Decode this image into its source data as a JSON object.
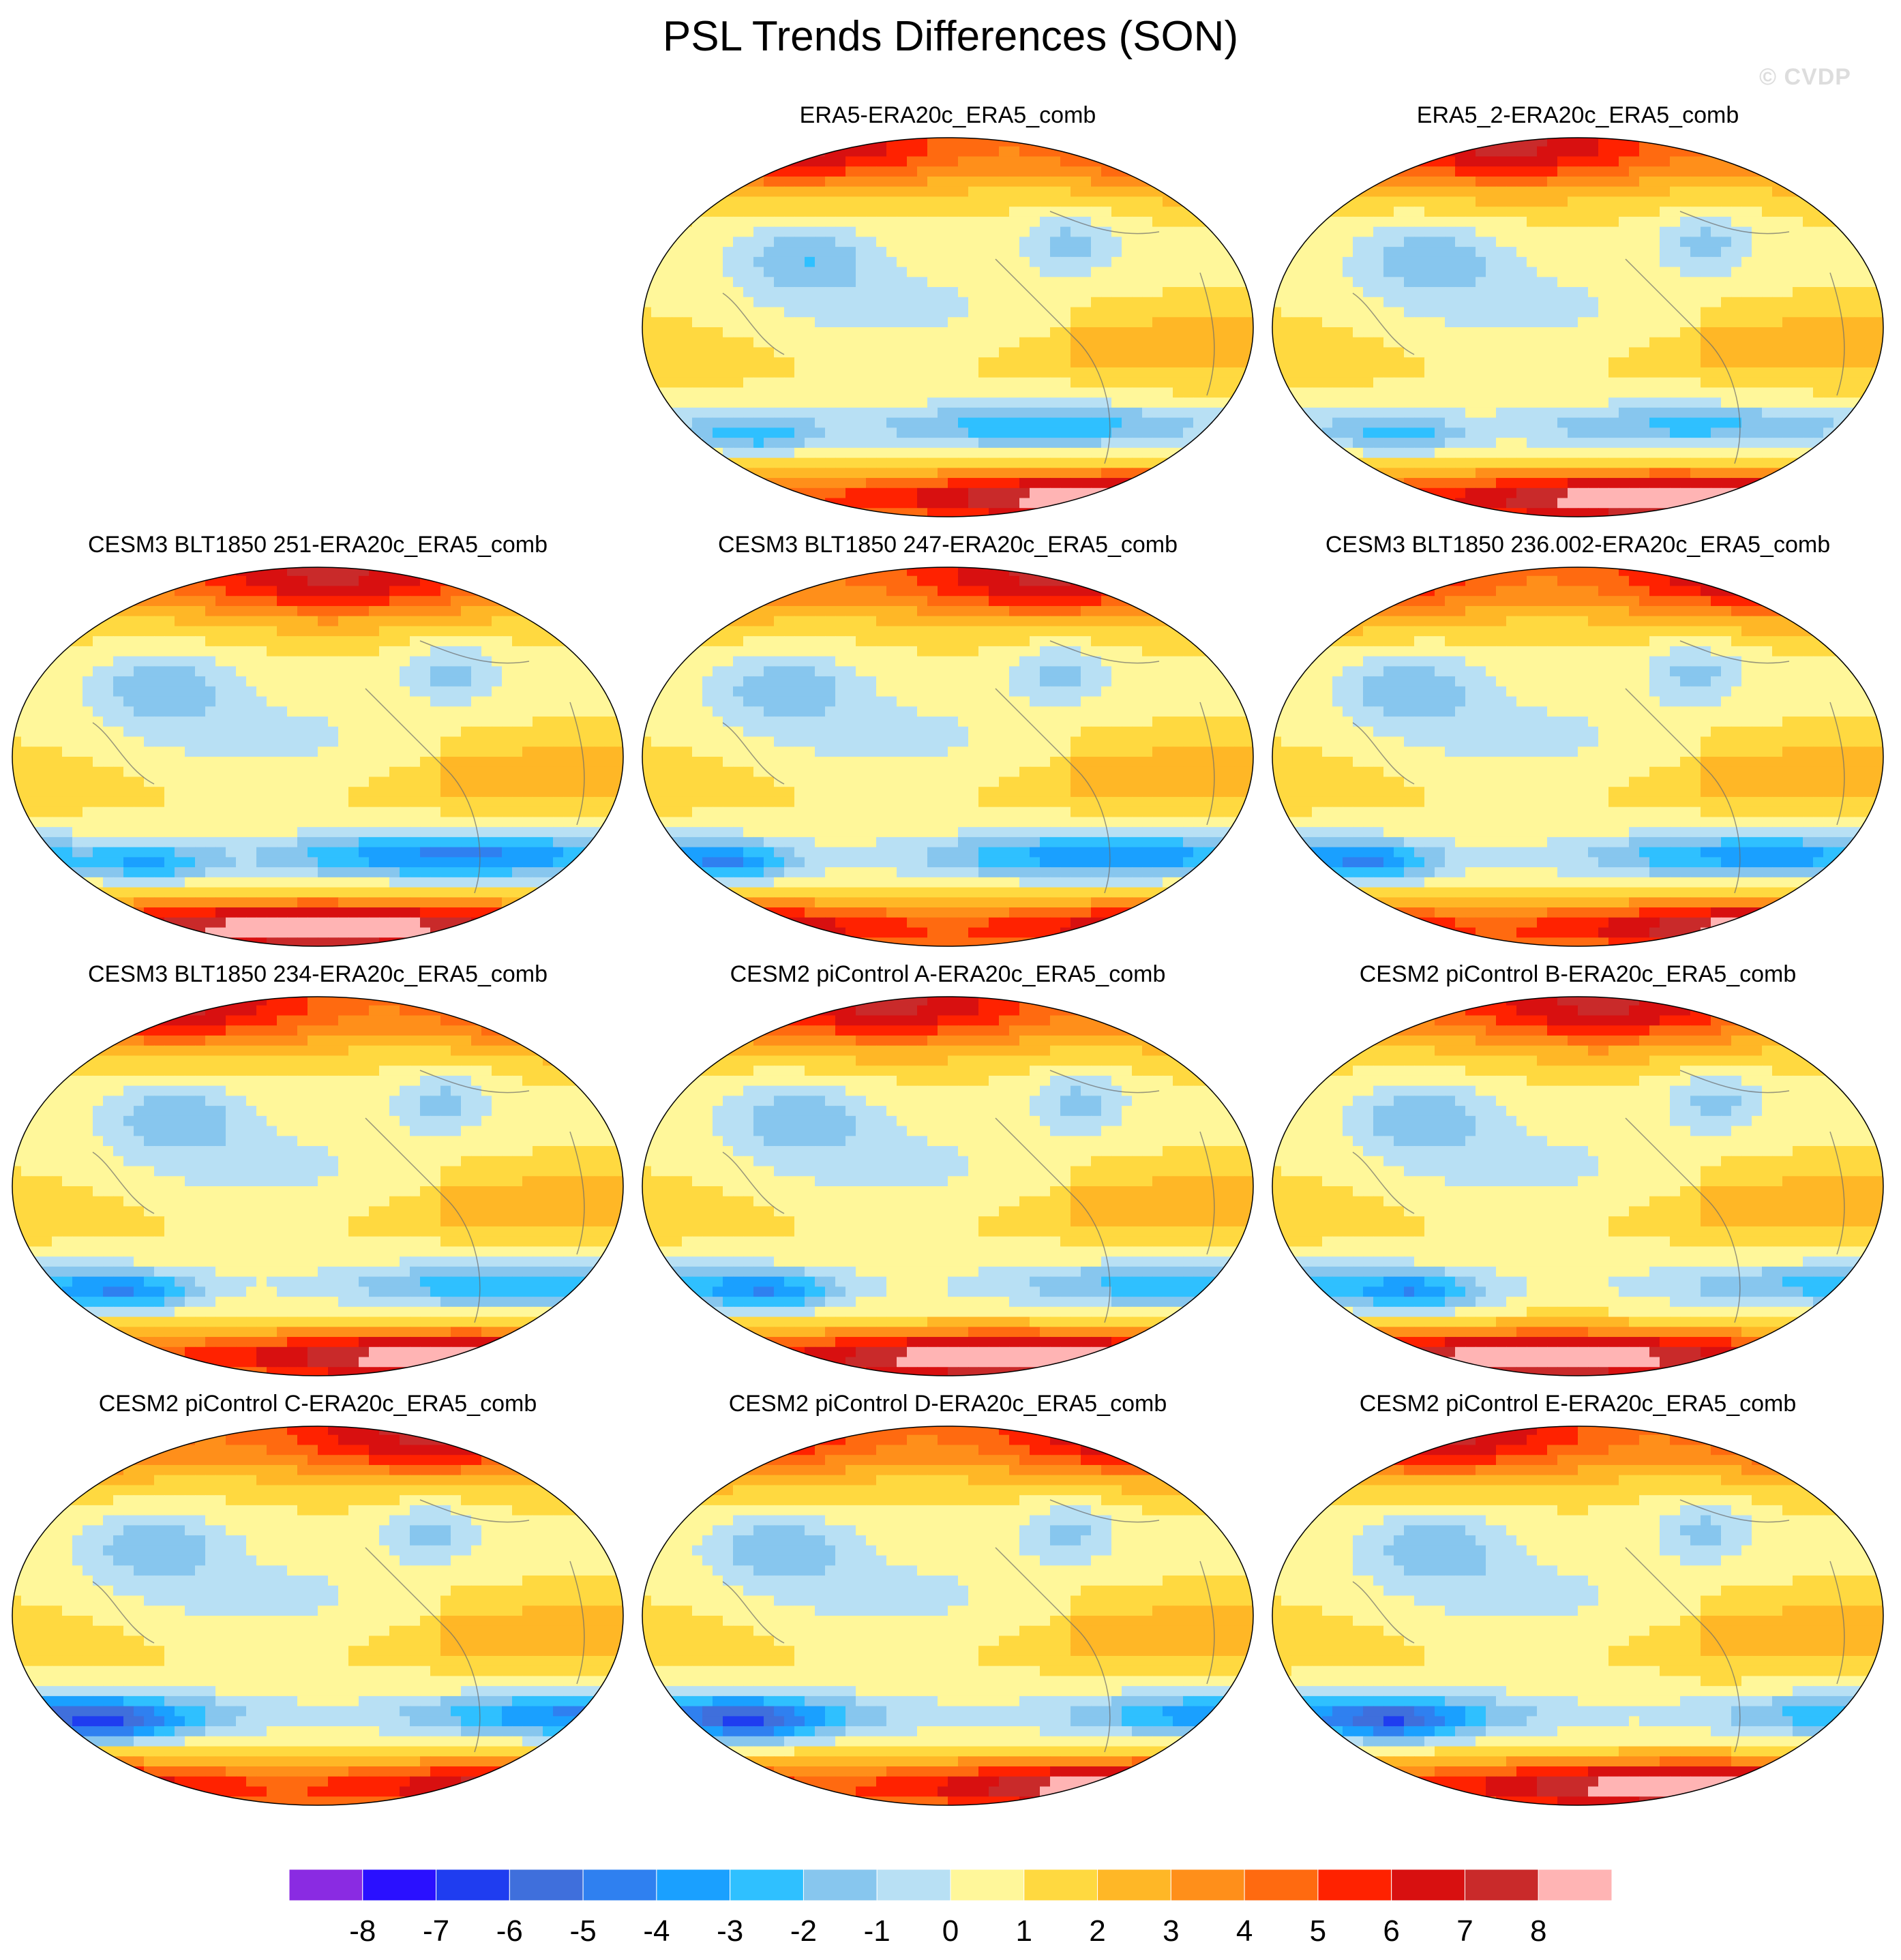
{
  "title": "PSL Trends Differences (SON)",
  "watermark": "© CVDP",
  "panels": [
    {
      "title": "ERA5-ERA20c_ERA5_comb",
      "variant": 0
    },
    {
      "title": "ERA5_2-ERA20c_ERA5_comb",
      "variant": 1
    },
    {
      "title": "CESM3 BLT1850 251-ERA20c_ERA5_comb",
      "variant": 2
    },
    {
      "title": "CESM3 BLT1850 247-ERA20c_ERA5_comb",
      "variant": 3
    },
    {
      "title": "CESM3 BLT1850 236.002-ERA20c_ERA5_comb",
      "variant": 4
    },
    {
      "title": "CESM3 BLT1850 234-ERA20c_ERA5_comb",
      "variant": 5
    },
    {
      "title": "CESM2 piControl A-ERA20c_ERA5_comb",
      "variant": 6
    },
    {
      "title": "CESM2 piControl B-ERA20c_ERA5_comb",
      "variant": 7
    },
    {
      "title": "CESM2 piControl C-ERA20c_ERA5_comb",
      "variant": 8
    },
    {
      "title": "CESM2 piControl D-ERA20c_ERA5_comb",
      "variant": 9
    },
    {
      "title": "CESM2 piControl E-ERA20c_ERA5_comb",
      "variant": 10
    }
  ],
  "chart_data": {
    "type": "heatmap",
    "projection": "Robinson-like global map, Pacific-centred",
    "colorbar": {
      "labels": [
        "-8",
        "-7",
        "-6",
        "-5",
        "-4",
        "-3",
        "-2",
        "-1",
        "0",
        "1",
        "2",
        "3",
        "4",
        "5",
        "6",
        "7",
        "8"
      ],
      "colors": [
        "#8a2be2",
        "#2a10ff",
        "#1f3df0",
        "#3f6fdc",
        "#2f80f0",
        "#1aa0ff",
        "#2fc0ff",
        "#87c6ee",
        "#b8e0f4",
        "#fff79a",
        "#ffd940",
        "#ffb726",
        "#ff8f1a",
        "#ff6a10",
        "#ff2200",
        "#d81010",
        "#c92a2a",
        "#ffb4b4"
      ]
    },
    "pattern_summary": {
      "north_polar": "positive (4 to 8)",
      "tropics": "weak positive (0 to 2)",
      "north_pacific": "weak negative (-1 to -3)",
      "southern_ocean_50S": "negative (-3 to -7)",
      "antarctica_coast": "strong positive (5 to 8+)"
    }
  }
}
